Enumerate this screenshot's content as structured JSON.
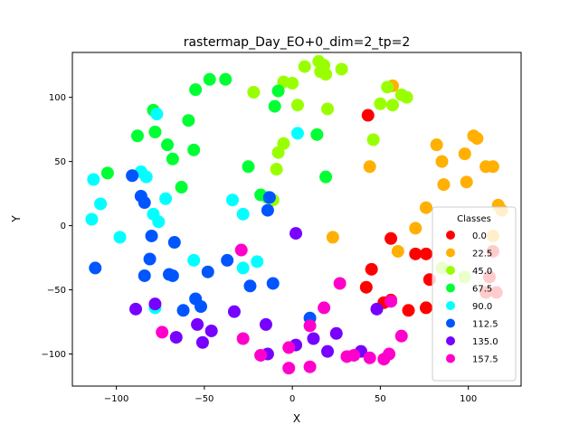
{
  "chart_data": {
    "type": "scatter",
    "title": "rastermap_Day_EO+0_dim=2_tp=2",
    "xlabel": "X",
    "ylabel": "Y",
    "xlim": [
      -125,
      130
    ],
    "ylim": [
      -125,
      135
    ],
    "xticks": [
      -100,
      -50,
      0,
      50,
      100
    ],
    "yticks": [
      -100,
      -50,
      0,
      50,
      100
    ],
    "grid": false,
    "legend": {
      "title": "Classes",
      "position": "right"
    },
    "series": [
      {
        "name": "0.0",
        "color": "#ff0000",
        "points": [
          [
            43,
            86
          ],
          [
            56,
            -10
          ],
          [
            70,
            -22
          ],
          [
            76,
            -22
          ],
          [
            78,
            -42
          ],
          [
            45,
            -34
          ],
          [
            42,
            -48
          ],
          [
            56,
            -58
          ],
          [
            52,
            -60
          ],
          [
            66,
            -66
          ],
          [
            76,
            -64
          ],
          [
            114,
            -20
          ],
          [
            112,
            -40
          ],
          [
            116,
            -52
          ],
          [
            110,
            -52
          ]
        ]
      },
      {
        "name": "22.5",
        "color": "#ffb000",
        "points": [
          [
            57,
            109
          ],
          [
            82,
            63
          ],
          [
            85,
            50
          ],
          [
            86,
            32
          ],
          [
            98,
            56
          ],
          [
            103,
            70
          ],
          [
            105,
            68
          ],
          [
            110,
            46
          ],
          [
            114,
            46
          ],
          [
            99,
            34
          ],
          [
            76,
            14
          ],
          [
            70,
            -2
          ],
          [
            44,
            46
          ],
          [
            60,
            -20
          ],
          [
            23,
            -9
          ],
          [
            117,
            16
          ],
          [
            119,
            12
          ],
          [
            114,
            -8
          ]
        ]
      },
      {
        "name": "45.0",
        "color": "#99ff00",
        "points": [
          [
            15,
            128
          ],
          [
            18,
            125
          ],
          [
            16,
            120
          ],
          [
            19,
            118
          ],
          [
            28,
            122
          ],
          [
            54,
            108
          ],
          [
            62,
            102
          ],
          [
            65,
            100
          ],
          [
            57,
            94
          ],
          [
            50,
            95
          ],
          [
            46,
            67
          ],
          [
            20,
            91
          ],
          [
            7,
            124
          ],
          [
            0,
            111
          ],
          [
            -5,
            112
          ],
          [
            3,
            94
          ],
          [
            -22,
            104
          ],
          [
            -5,
            64
          ],
          [
            -8,
            57
          ],
          [
            -9,
            44
          ],
          [
            -11,
            20
          ],
          [
            85,
            -33
          ],
          [
            98,
            -40
          ]
        ]
      },
      {
        "name": "67.5",
        "color": "#00ff33",
        "points": [
          [
            -55,
            106
          ],
          [
            -47,
            114
          ],
          [
            -38,
            114
          ],
          [
            -8,
            105
          ],
          [
            -10,
            93
          ],
          [
            14,
            71
          ],
          [
            19,
            38
          ],
          [
            -25,
            46
          ],
          [
            -18,
            24
          ],
          [
            -14,
            22
          ],
          [
            -79,
            90
          ],
          [
            -78,
            73
          ],
          [
            -88,
            70
          ],
          [
            -71,
            63
          ],
          [
            -68,
            52
          ],
          [
            -56,
            59
          ],
          [
            -59,
            82
          ],
          [
            -63,
            30
          ],
          [
            -105,
            41
          ]
        ]
      },
      {
        "name": "90.0",
        "color": "#00ffff",
        "points": [
          [
            -77,
            87
          ],
          [
            -86,
            42
          ],
          [
            -83,
            38
          ],
          [
            -72,
            21
          ],
          [
            -79,
            9
          ],
          [
            -76,
            3
          ],
          [
            -113,
            36
          ],
          [
            -109,
            17
          ],
          [
            -114,
            5
          ],
          [
            -98,
            -9
          ],
          [
            -56,
            -27
          ],
          [
            -34,
            20
          ],
          [
            -28,
            9
          ],
          [
            -28,
            -33
          ],
          [
            -20,
            -28
          ],
          [
            3,
            72
          ],
          [
            -78,
            -64
          ]
        ]
      },
      {
        "name": "112.5",
        "color": "#0055ff",
        "points": [
          [
            -91,
            39
          ],
          [
            -86,
            23
          ],
          [
            -84,
            18
          ],
          [
            -80,
            -8
          ],
          [
            -67,
            -13
          ],
          [
            -81,
            -26
          ],
          [
            -84,
            -39
          ],
          [
            -70,
            -38
          ],
          [
            -68,
            -39
          ],
          [
            -112,
            -33
          ],
          [
            -62,
            -66
          ],
          [
            -55,
            -57
          ],
          [
            -52,
            -63
          ],
          [
            -48,
            -36
          ],
          [
            -37,
            -27
          ],
          [
            -24,
            -47
          ],
          [
            -11,
            -45
          ],
          [
            -14,
            12
          ],
          [
            -13,
            22
          ],
          [
            10,
            -72
          ]
        ]
      },
      {
        "name": "135.0",
        "color": "#7700ff",
        "points": [
          [
            -89,
            -65
          ],
          [
            -78,
            -61
          ],
          [
            -66,
            -87
          ],
          [
            -54,
            -77
          ],
          [
            -51,
            -91
          ],
          [
            -46,
            -82
          ],
          [
            -33,
            -67
          ],
          [
            -15,
            -77
          ],
          [
            -14,
            -100
          ],
          [
            2,
            -93
          ],
          [
            2,
            -6
          ],
          [
            12,
            -88
          ],
          [
            20,
            -98
          ],
          [
            25,
            -84
          ],
          [
            48,
            -65
          ],
          [
            39,
            -98
          ]
        ]
      },
      {
        "name": "157.5",
        "color": "#ff00cc",
        "points": [
          [
            -74,
            -83
          ],
          [
            -29,
            -19
          ],
          [
            -28,
            -88
          ],
          [
            -18,
            -101
          ],
          [
            -2,
            -95
          ],
          [
            -2,
            -111
          ],
          [
            10,
            -78
          ],
          [
            10,
            -110
          ],
          [
            18,
            -64
          ],
          [
            27,
            -45
          ],
          [
            31,
            -102
          ],
          [
            35,
            -101
          ],
          [
            44,
            -103
          ],
          [
            52,
            -104
          ],
          [
            55,
            -100
          ],
          [
            56,
            -59
          ],
          [
            62,
            -86
          ]
        ]
      }
    ]
  }
}
